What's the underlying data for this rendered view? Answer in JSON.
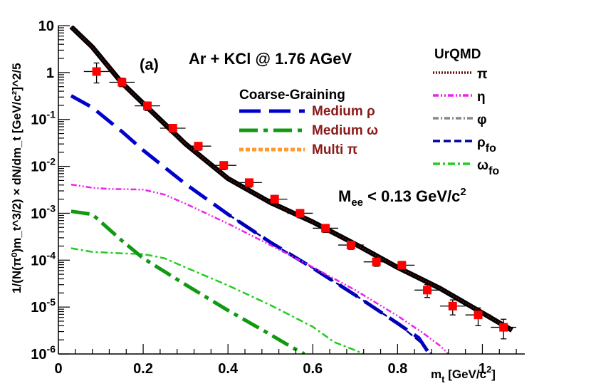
{
  "chart_data": {
    "type": "line",
    "title": "Ar + KCl @ 1.76 AGeV",
    "panel_label": "(a)",
    "mass_cut_parts": {
      "main": "M",
      "sub": "ee",
      "rest": " < 0.13 GeV/c",
      "sup": "2"
    },
    "xlabel_parts": {
      "main": "m",
      "sub": "t",
      "rest": "  [GeV/c",
      "sup": "2",
      "close": "]"
    },
    "ylabel": "1/(N(π⁰)m_t^3/2) × dN/dm_t [GeV/c²]^2/5",
    "xlim": [
      0,
      1.1
    ],
    "ylim": [
      1e-06,
      10
    ],
    "log_y": true,
    "x_ticks": [
      "0",
      "0.2",
      "0.4",
      "0.6",
      "0.8",
      "1"
    ],
    "x_tick_values": [
      0,
      0.2,
      0.4,
      0.6,
      0.8,
      1.0
    ],
    "y_ticks": [
      {
        "value": 1e-06,
        "base": "10",
        "exp": "-6"
      },
      {
        "value": 1e-05,
        "base": "10",
        "exp": "-5"
      },
      {
        "value": 0.0001,
        "base": "10",
        "exp": "-4"
      },
      {
        "value": 0.001,
        "base": "10",
        "exp": "-3"
      },
      {
        "value": 0.01,
        "base": "10",
        "exp": "-2"
      },
      {
        "value": 0.1,
        "base": "10",
        "exp": "-1"
      },
      {
        "value": 1,
        "base": "1",
        "exp": ""
      },
      {
        "value": 10,
        "base": "10",
        "exp": ""
      }
    ],
    "legend_cg": {
      "title": "Coarse-Graining",
      "entries": [
        {
          "label": "Medium ρ",
          "color": "#0000cc",
          "dash": "30,12"
        },
        {
          "label": "Medium ω",
          "color": "#119911",
          "dash": "26,8,6,8"
        },
        {
          "label": "Multi π",
          "color": "#ff9933",
          "dash": "6,3"
        }
      ]
    },
    "legend_urqmd": {
      "title": "UrQMD",
      "entries": [
        {
          "label": "π",
          "sub": "",
          "color": "#661111",
          "dash": "2,2"
        },
        {
          "label": "η",
          "sub": "",
          "color": "#ee22ee",
          "dash": "8,3,2,3,2,3"
        },
        {
          "label": "φ",
          "sub": "",
          "color": "#888888",
          "dash": "8,3,2,3"
        },
        {
          "label": "ρ",
          "sub": "fo",
          "color": "#000099",
          "dash": "10,5"
        },
        {
          "label": "ω",
          "sub": "fo",
          "color": "#22cc22",
          "dash": "10,4,3,4"
        }
      ]
    },
    "data_points": {
      "x": [
        0.09,
        0.15,
        0.21,
        0.27,
        0.33,
        0.39,
        0.45,
        0.51,
        0.57,
        0.63,
        0.69,
        0.75,
        0.81,
        0.87,
        0.93,
        0.99,
        1.05
      ],
      "y": [
        1.05,
        0.62,
        0.195,
        0.065,
        0.027,
        0.0105,
        0.0045,
        0.002,
        0.001,
        0.00048,
        0.00021,
        9.2e-05,
        7.8e-05,
        2.3e-05,
        1.05e-05,
        6.8e-06,
        3.7e-06
      ],
      "ylo": [
        0.6,
        0.5,
        0.155,
        0.052,
        0.022,
        0.0085,
        0.0036,
        0.0016,
        0.0008,
        0.00039,
        0.00017,
        7.4e-05,
        6.2e-05,
        1.6e-05,
        6.8e-06,
        4e-06,
        2.1e-06
      ],
      "yhi": [
        1.6,
        0.76,
        0.235,
        0.078,
        0.032,
        0.0125,
        0.0054,
        0.0024,
        0.0012,
        0.00057,
        0.00025,
        0.00011,
        9.4e-05,
        3e-05,
        1.42e-05,
        9.6e-06,
        5.5e-06
      ],
      "xerr": 0.03,
      "color": "#ff0000"
    },
    "series": [
      {
        "name": "Total",
        "color": "#000000",
        "width": 7,
        "dash": "",
        "x": [
          0.03,
          0.08,
          0.15,
          0.2,
          0.3,
          0.4,
          0.5,
          0.6,
          0.7,
          0.8,
          0.9,
          1.0,
          1.07
        ],
        "y": [
          9.5,
          3.5,
          0.6,
          0.22,
          0.03,
          0.0055,
          0.0017,
          0.00065,
          0.00022,
          7e-05,
          2.5e-05,
          7.5e-06,
          3.2e-06
        ]
      },
      {
        "name": "UrQMD π",
        "color": "#661111",
        "width": 2,
        "dash": "2,2",
        "x": [
          0.03,
          0.08,
          0.15,
          0.2,
          0.3,
          0.4,
          0.5,
          0.6,
          0.7,
          0.8,
          0.9,
          1.0,
          1.07
        ],
        "y": [
          9.5,
          3.5,
          0.6,
          0.22,
          0.03,
          0.0055,
          0.0017,
          0.00065,
          0.00022,
          7e-05,
          2.5e-05,
          7.5e-06,
          3.2e-06
        ]
      },
      {
        "name": "Medium ρ",
        "color": "#0000cc",
        "width": 5,
        "dash": "30,12",
        "x": [
          0.03,
          0.08,
          0.15,
          0.2,
          0.3,
          0.4,
          0.5,
          0.6,
          0.7,
          0.8,
          0.85,
          0.875
        ],
        "y": [
          0.32,
          0.18,
          0.055,
          0.022,
          0.0042,
          0.00095,
          0.00024,
          6.8e-05,
          1.8e-05,
          4.5e-06,
          2.2e-06,
          1e-06
        ]
      },
      {
        "name": "UrQMD ρ fo",
        "color": "#000099",
        "width": 2.5,
        "dash": "10,5",
        "x": [
          0.4,
          0.5,
          0.6,
          0.7,
          0.8,
          0.86,
          0.88
        ],
        "y": [
          0.00095,
          0.00024,
          6.8e-05,
          1.8e-05,
          4.5e-06,
          1.6e-06,
          1e-06
        ]
      },
      {
        "name": "UrQMD η",
        "color": "#ee22ee",
        "width": 2.5,
        "dash": "8,3,2,3,2,3",
        "x": [
          0.03,
          0.08,
          0.12,
          0.2,
          0.25,
          0.3,
          0.4,
          0.5,
          0.6,
          0.7,
          0.8,
          0.86,
          0.9,
          0.92
        ],
        "y": [
          0.0041,
          0.0035,
          0.0033,
          0.0032,
          0.0025,
          0.0016,
          0.0006,
          0.00021,
          7.1e-05,
          2.3e-05,
          6.5e-06,
          2.8e-06,
          1.5e-06,
          1e-06
        ]
      },
      {
        "name": "UrQMD ω fo",
        "color": "#22cc22",
        "width": 2.5,
        "dash": "10,4,3,4",
        "x": [
          0.03,
          0.08,
          0.15,
          0.2,
          0.25,
          0.3,
          0.4,
          0.5,
          0.6,
          0.65,
          0.7,
          0.72
        ],
        "y": [
          0.00018,
          0.00015,
          0.00014,
          0.000135,
          0.00011,
          7e-05,
          2.9e-05,
          1.1e-05,
          3.8e-06,
          1.8e-06,
          1.2e-06,
          1e-06
        ]
      },
      {
        "name": "Medium ω",
        "color": "#119911",
        "width": 5,
        "dash": "26,8,6,8",
        "x": [
          0.03,
          0.08,
          0.15,
          0.2,
          0.3,
          0.4,
          0.5,
          0.55,
          0.58
        ],
        "y": [
          0.0011,
          0.00095,
          0.00026,
          0.00011,
          3e-05,
          8.5e-06,
          2.6e-06,
          1.4e-06,
          1e-06
        ]
      }
    ]
  }
}
